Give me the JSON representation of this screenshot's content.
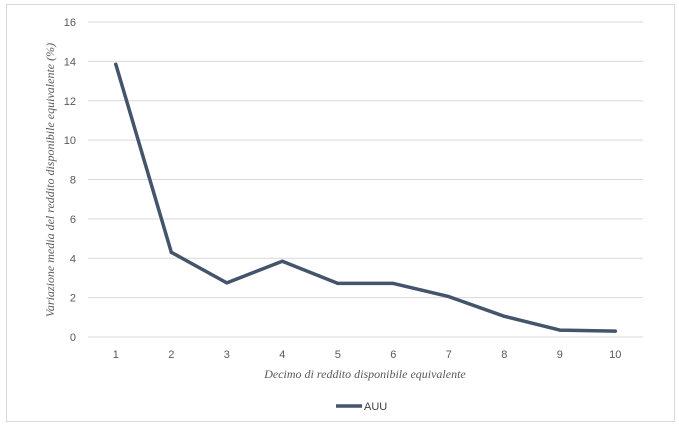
{
  "chart_data": {
    "type": "line",
    "x": [
      1,
      2,
      3,
      4,
      5,
      6,
      7,
      8,
      9,
      10
    ],
    "series": [
      {
        "name": "AUU",
        "values": [
          13.85,
          4.3,
          2.75,
          3.85,
          2.72,
          2.72,
          2.05,
          1.05,
          0.35,
          0.3
        ],
        "color": "#44546a"
      }
    ],
    "xlabel": "Decimo di reddito disponibile equivalente",
    "ylabel": "Variazione media del reddito disponibile equivalente (%)",
    "xticks": [
      "1",
      "2",
      "3",
      "4",
      "5",
      "6",
      "7",
      "8",
      "9",
      "10"
    ],
    "yticks": [
      "0",
      "2",
      "4",
      "6",
      "8",
      "10",
      "12",
      "14",
      "16"
    ],
    "ylim": [
      0,
      16
    ],
    "grid": true,
    "legend": "bottom-center",
    "colors": {
      "grid": "#d9d9d9",
      "text": "#595959"
    }
  }
}
